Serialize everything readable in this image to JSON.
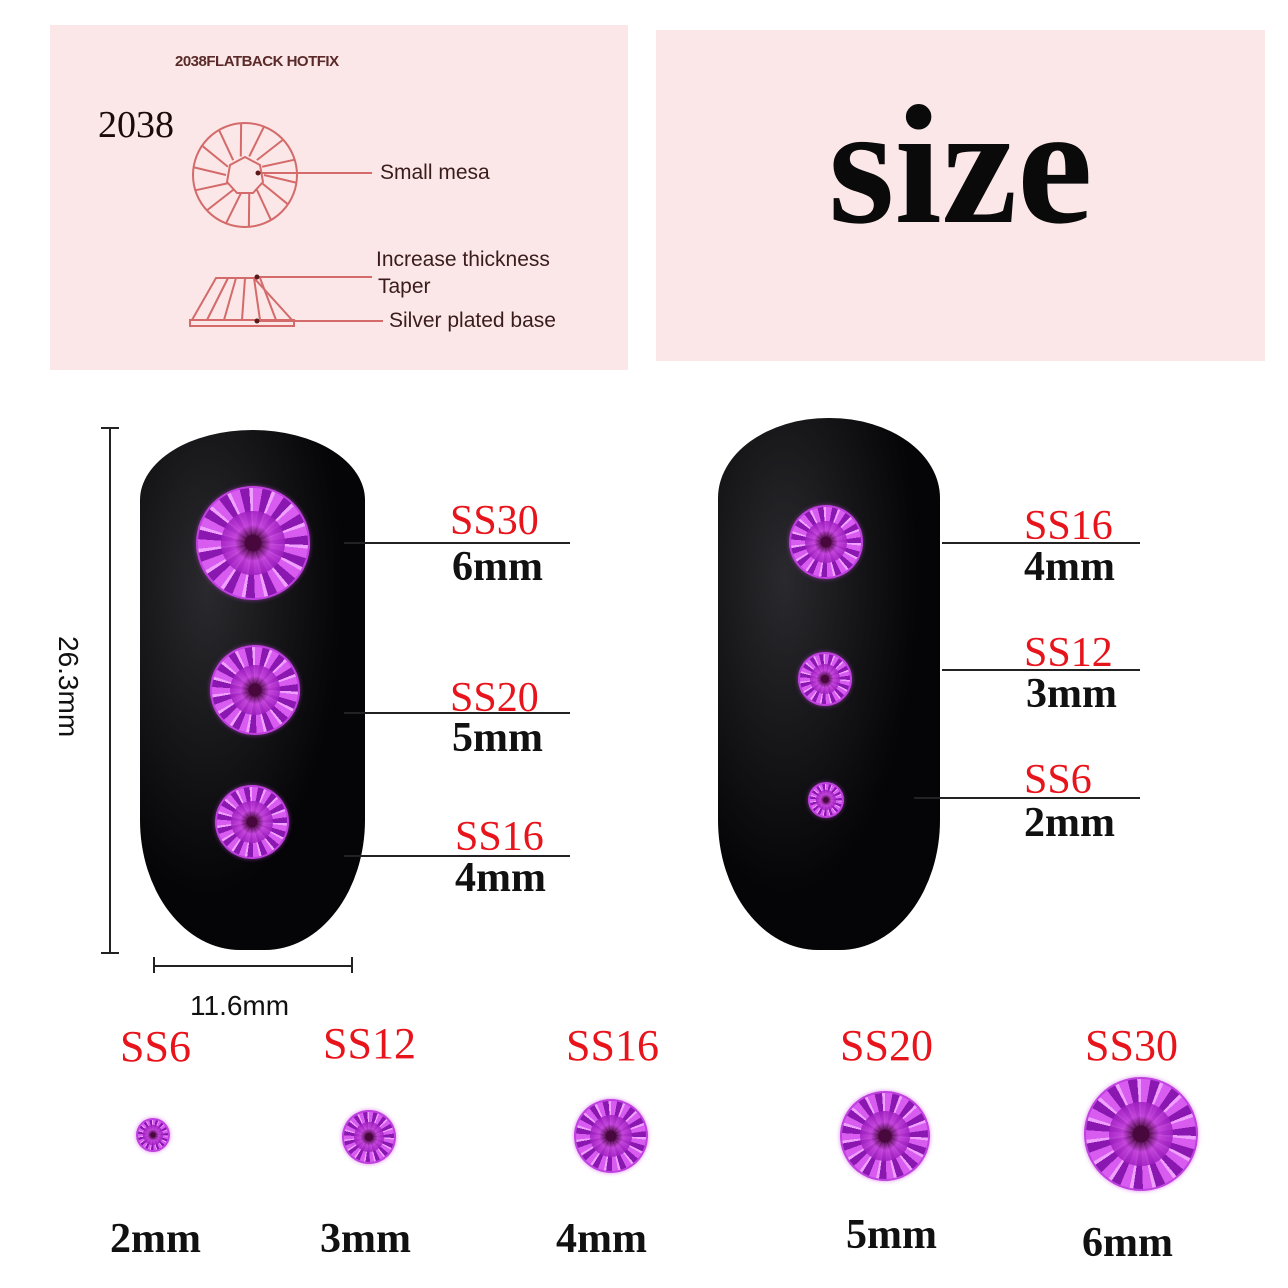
{
  "diagram": {
    "heading": "2038FLATBACK HOTFIX",
    "model": "2038",
    "labels": {
      "small_mesa": "Small mesa",
      "increase_thickness": "Increase thickness",
      "taper": "Taper",
      "base": "Silver plated base"
    },
    "line_color": "#d46a6a"
  },
  "title": "size",
  "dimensions": {
    "height": "26.3mm",
    "width": "11.6mm"
  },
  "left_nail": [
    {
      "code": "SS30",
      "size": "6mm"
    },
    {
      "code": "SS20",
      "size": "5mm"
    },
    {
      "code": "SS16",
      "size": "4mm"
    }
  ],
  "right_nail": [
    {
      "code": "SS16",
      "size": "4mm"
    },
    {
      "code": "SS12",
      "size": "3mm"
    },
    {
      "code": "SS6",
      "size": "2mm"
    }
  ],
  "bottom_row": [
    {
      "code": "SS6",
      "size": "2mm"
    },
    {
      "code": "SS12",
      "size": "3mm"
    },
    {
      "code": "SS16",
      "size": "4mm"
    },
    {
      "code": "SS20",
      "size": "5mm"
    },
    {
      "code": "SS30",
      "size": "6mm"
    }
  ],
  "colors": {
    "code_text": "#e8141c",
    "gem": "#b030d0",
    "panel": "#fbe7e7"
  }
}
